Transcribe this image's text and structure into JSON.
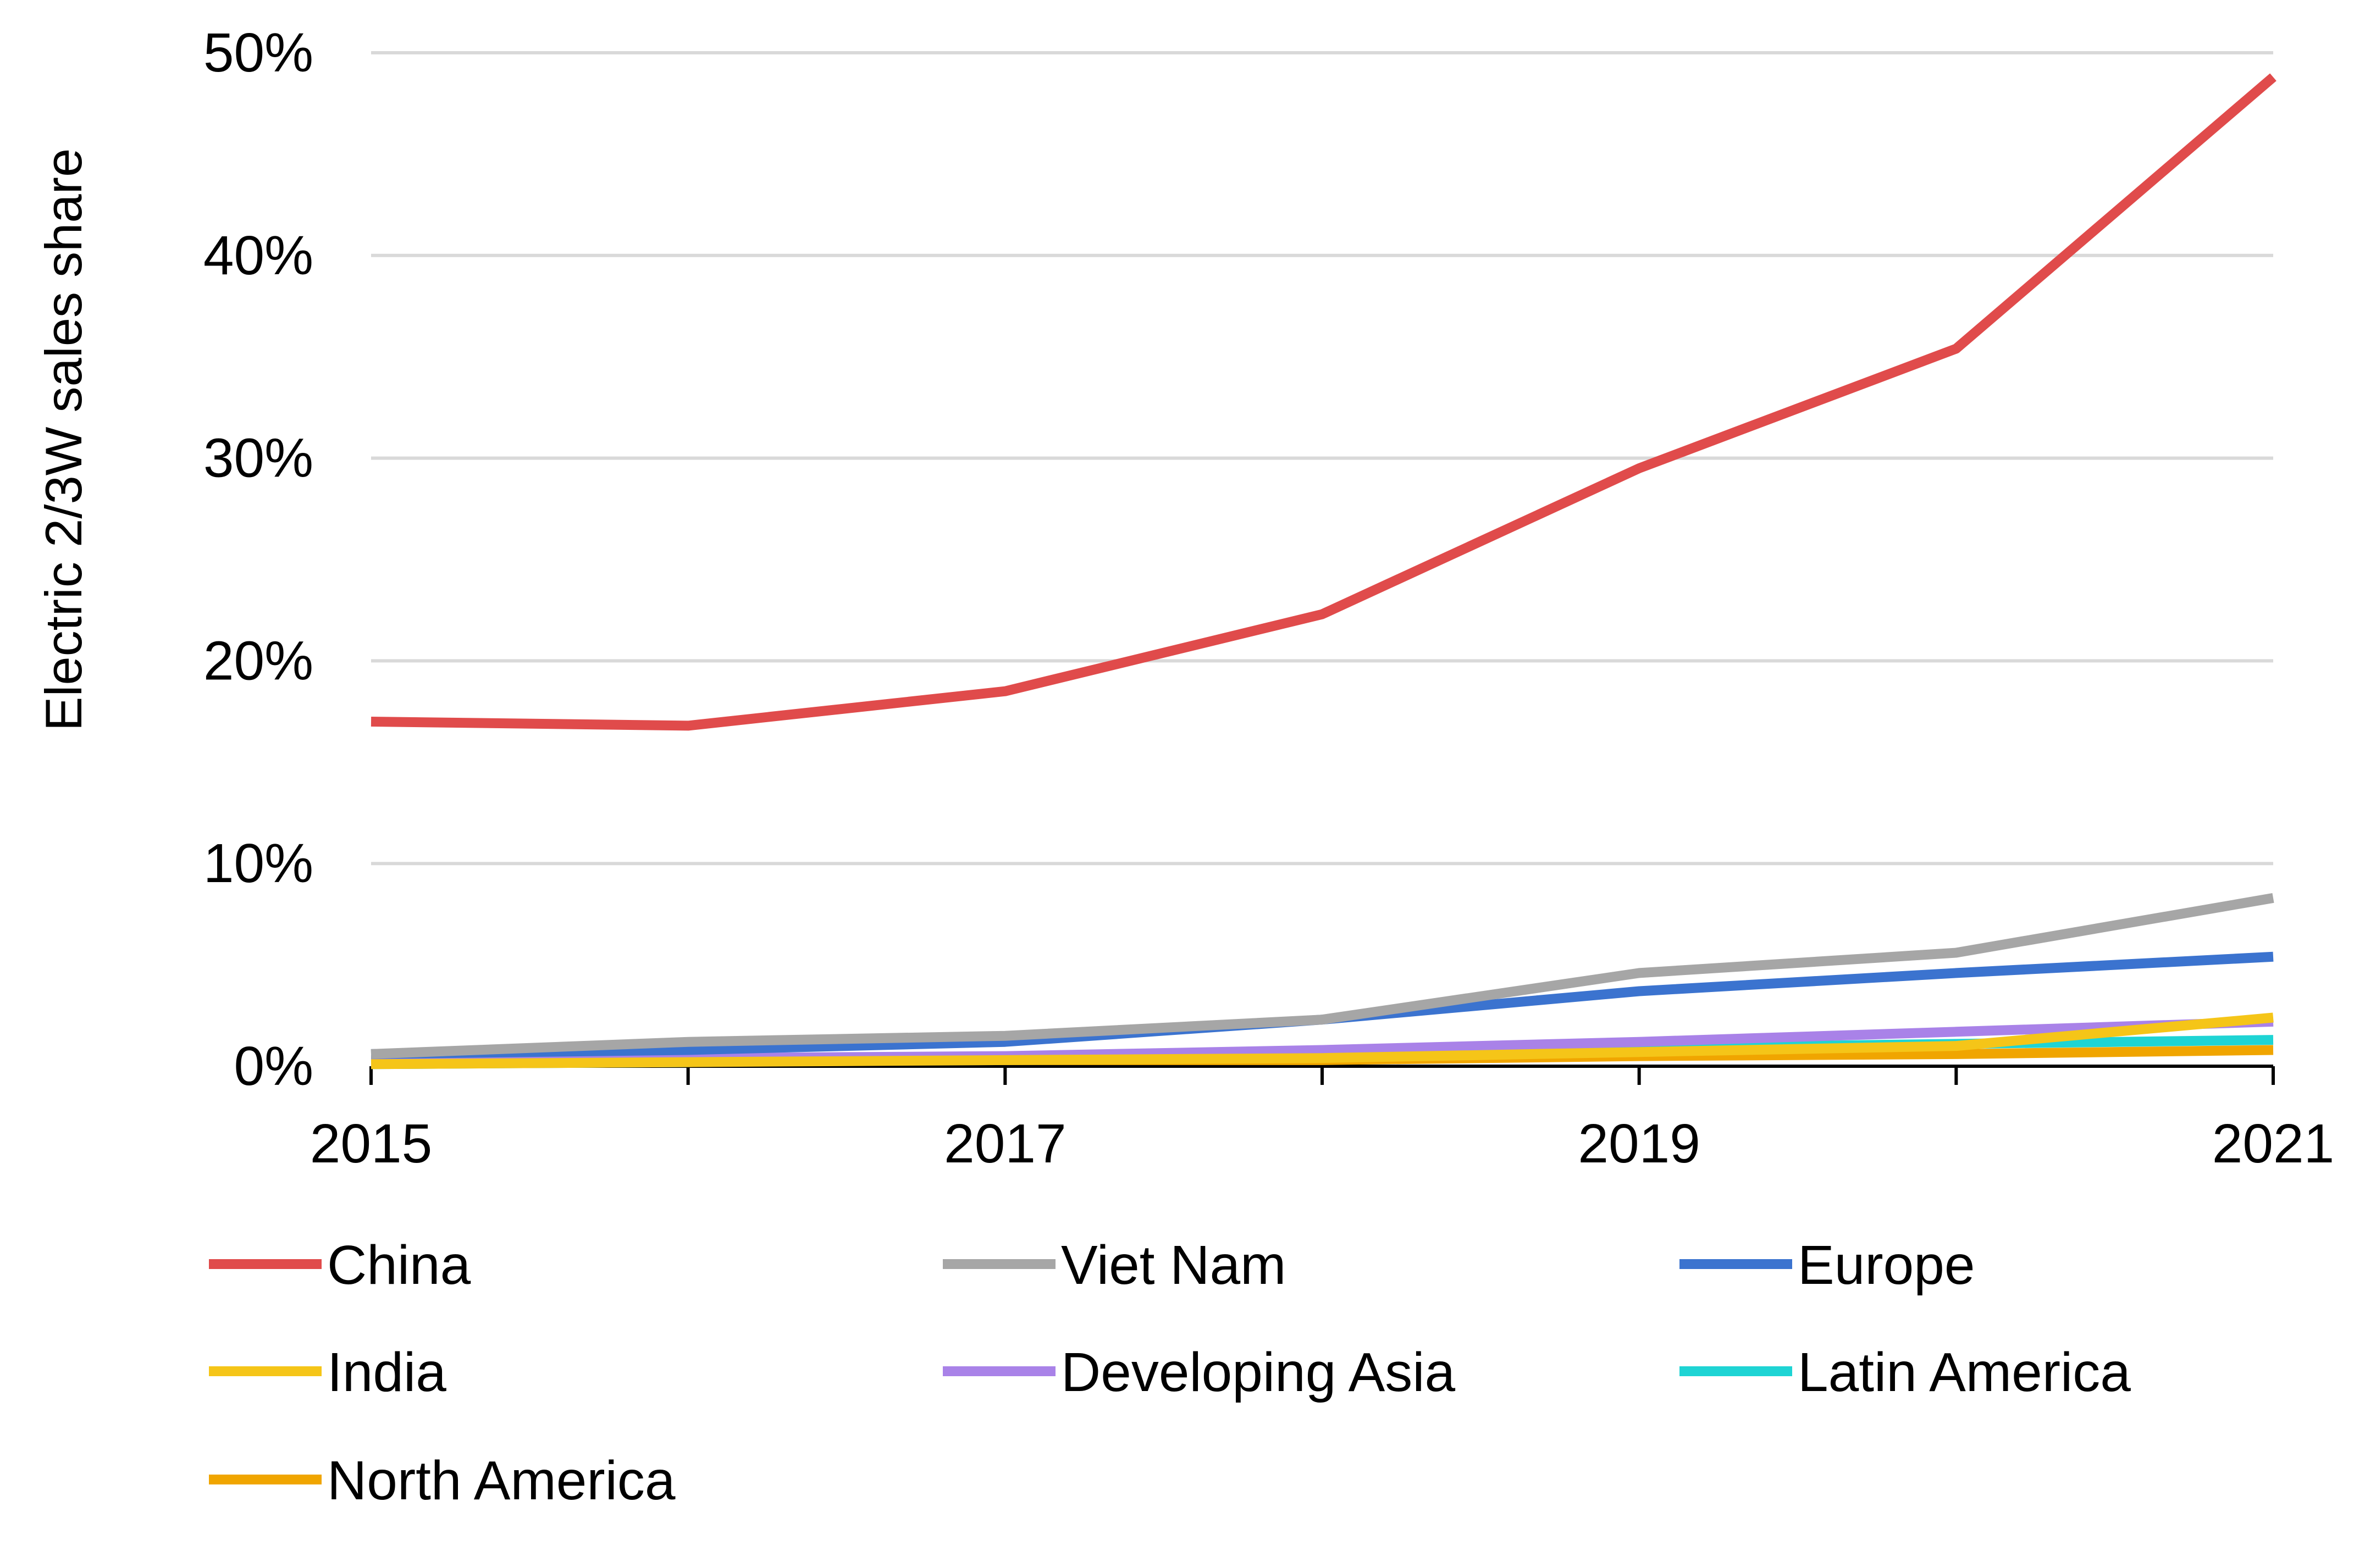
{
  "chart_data": {
    "type": "line",
    "title": "",
    "xlabel": "",
    "ylabel": "Electric 2/3W sales share",
    "x": [
      2015,
      2016,
      2017,
      2018,
      2019,
      2020,
      2021
    ],
    "xticks": [
      "2015",
      "2017",
      "2019",
      "2021"
    ],
    "xtick_values": [
      2015,
      2017,
      2019,
      2021
    ],
    "ylim": [
      0,
      50
    ],
    "yticks": [
      "0%",
      "10%",
      "20%",
      "30%",
      "40%",
      "50%"
    ],
    "ytick_values": [
      0,
      10,
      20,
      30,
      40,
      50
    ],
    "grid": true,
    "legend_position": "bottom",
    "series": [
      {
        "name": "China",
        "color": "#E04B4B",
        "values": [
          17.0,
          16.8,
          18.5,
          22.3,
          29.5,
          35.4,
          48.8
        ]
      },
      {
        "name": "Viet Nam",
        "color": "#A6A6A6",
        "values": [
          0.6,
          1.2,
          1.5,
          2.3,
          4.6,
          5.6,
          8.3
        ]
      },
      {
        "name": "Europe",
        "color": "#3B73CF",
        "values": [
          0.6,
          0.8,
          1.2,
          2.3,
          3.7,
          4.6,
          5.4
        ]
      },
      {
        "name": "India",
        "color": "#F5C518",
        "values": [
          0.1,
          0.2,
          0.3,
          0.4,
          0.7,
          1.0,
          2.4
        ]
      },
      {
        "name": "Developing Asia",
        "color": "#A982E8",
        "values": [
          0.3,
          0.4,
          0.5,
          0.8,
          1.2,
          1.7,
          2.2
        ]
      },
      {
        "name": "Latin America",
        "color": "#1ED4D4",
        "values": [
          0.1,
          0.2,
          0.4,
          0.7,
          0.9,
          1.1,
          1.3
        ]
      },
      {
        "name": "North America",
        "color": "#F0A500",
        "values": [
          0.3,
          0.3,
          0.3,
          0.3,
          0.5,
          0.6,
          0.8
        ]
      }
    ]
  }
}
